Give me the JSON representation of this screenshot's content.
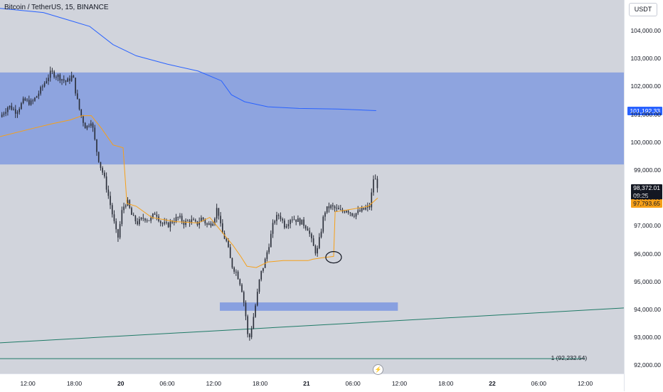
{
  "header": {
    "title": "Bitcoin / TetherUS, 15, BINANCE"
  },
  "axis": {
    "unit": "USDT"
  },
  "tags": {
    "ma_value": "101,192.33",
    "last_price": "98,372.01",
    "countdown": "09:25",
    "vwap_value": "97,793.65"
  },
  "horizontal_line": {
    "label": "1 (92,232.54)",
    "price": 92232.54
  },
  "chart_data": {
    "type": "candlestick",
    "symbol": "Bitcoin / TetherUS",
    "interval": "15",
    "exchange": "BINANCE",
    "ylim": [
      91700,
      105100
    ],
    "y_ticks": [
      {
        "v": 92000,
        "label": "92,000.00"
      },
      {
        "v": 93000,
        "label": "93,000.00"
      },
      {
        "v": 94000,
        "label": "94,000.00"
      },
      {
        "v": 95000,
        "label": "95,000.00"
      },
      {
        "v": 96000,
        "label": "96,000.00"
      },
      {
        "v": 97000,
        "label": "97,000.00"
      },
      {
        "v": 98000,
        "label": "98,000.00"
      },
      {
        "v": 99000,
        "label": "99,000.00"
      },
      {
        "v": 100000,
        "label": "100,000.00"
      },
      {
        "v": 101000,
        "label": "101,000.00"
      },
      {
        "v": 102000,
        "label": "102,000.00"
      },
      {
        "v": 103000,
        "label": "103,000.00"
      },
      {
        "v": 104000,
        "label": "104,000.00"
      }
    ],
    "x_ticks": [
      {
        "t": 0,
        "label": "12:00"
      },
      {
        "t": 6,
        "label": "18:00"
      },
      {
        "t": 12,
        "label": "20",
        "bold": true
      },
      {
        "t": 18,
        "label": "06:00"
      },
      {
        "t": 24,
        "label": "12:00"
      },
      {
        "t": 30,
        "label": "18:00"
      },
      {
        "t": 36,
        "label": "21",
        "bold": true
      },
      {
        "t": 42,
        "label": "06:00"
      },
      {
        "t": 48,
        "label": "12:00"
      },
      {
        "t": 54,
        "label": "18:00"
      },
      {
        "t": 60,
        "label": "22",
        "bold": true
      },
      {
        "t": 66,
        "label": "06:00"
      },
      {
        "t": 72,
        "label": "12:00"
      }
    ],
    "x_range": [
      -3.6,
      77
    ],
    "zones": [
      {
        "t0": -3.6,
        "t1": 77,
        "top": 102500,
        "bottom": 99200
      },
      {
        "t0": 24.8,
        "t1": 47.8,
        "top": 94250,
        "bottom": 93950
      }
    ],
    "trendline": {
      "t0": -3.6,
      "p0": 92800,
      "t1": 77,
      "p1": 94050
    },
    "hline": {
      "t0": -3.6,
      "t1": 72,
      "p": 92232.54
    },
    "annotation_circle": {
      "t": 39.5,
      "p": 95870
    },
    "close_path": [
      [
        -3.6,
        100900
      ],
      [
        -2.5,
        101300
      ],
      [
        -1.5,
        101100
      ],
      [
        -0.5,
        101500
      ],
      [
        0.5,
        101400
      ],
      [
        1.5,
        101800
      ],
      [
        2.5,
        102300
      ],
      [
        3,
        102500
      ],
      [
        4,
        102350
      ],
      [
        5,
        102150
      ],
      [
        5.8,
        102400
      ],
      [
        6.3,
        101600
      ],
      [
        6.8,
        101000
      ],
      [
        7.5,
        100500
      ],
      [
        8.2,
        100800
      ],
      [
        8.8,
        99800
      ],
      [
        9.3,
        99200
      ],
      [
        9.8,
        98800
      ],
      [
        10.3,
        98200
      ],
      [
        11,
        97300
      ],
      [
        11.6,
        96500
      ],
      [
        12.2,
        97600
      ],
      [
        12.8,
        97900
      ],
      [
        13.5,
        97300
      ],
      [
        14.2,
        97100
      ],
      [
        15,
        97300
      ],
      [
        15.8,
        97200
      ],
      [
        16.5,
        97500
      ],
      [
        17.2,
        97100
      ],
      [
        18,
        97000
      ],
      [
        18.8,
        97200
      ],
      [
        19.5,
        97300
      ],
      [
        20.2,
        97100
      ],
      [
        21,
        97200
      ],
      [
        21.8,
        97050
      ],
      [
        22.5,
        97300
      ],
      [
        23.2,
        97000
      ],
      [
        24,
        97200
      ],
      [
        24.5,
        97700
      ],
      [
        25,
        96800
      ],
      [
        25.7,
        96400
      ],
      [
        26.3,
        95600
      ],
      [
        27,
        95300
      ],
      [
        27.6,
        94800
      ],
      [
        28.1,
        93900
      ],
      [
        28.5,
        92800
      ],
      [
        29,
        93500
      ],
      [
        29.5,
        94300
      ],
      [
        30,
        95200
      ],
      [
        30.6,
        95700
      ],
      [
        31.2,
        96400
      ],
      [
        31.8,
        97200
      ],
      [
        32.5,
        97400
      ],
      [
        33.2,
        97000
      ],
      [
        34,
        97300
      ],
      [
        34.8,
        97200
      ],
      [
        35.5,
        97100
      ],
      [
        36.2,
        96900
      ],
      [
        36.8,
        96300
      ],
      [
        37.3,
        96000
      ],
      [
        37.8,
        96700
      ],
      [
        38.3,
        97500
      ],
      [
        39,
        97700
      ],
      [
        39.8,
        97600
      ],
      [
        40.5,
        97500
      ],
      [
        41.2,
        97600
      ],
      [
        42,
        97400
      ],
      [
        42.8,
        97500
      ],
      [
        43.5,
        97600
      ],
      [
        44.2,
        97700
      ],
      [
        44.7,
        98800
      ],
      [
        45.2,
        98400
      ]
    ],
    "ma_path": [
      [
        -3.6,
        104800
      ],
      [
        2,
        104650
      ],
      [
        5,
        104400
      ],
      [
        8,
        104150
      ],
      [
        11,
        103500
      ],
      [
        14,
        103100
      ],
      [
        18,
        102800
      ],
      [
        22,
        102550
      ],
      [
        25,
        102200
      ],
      [
        26.3,
        101700
      ],
      [
        28,
        101450
      ],
      [
        31,
        101270
      ],
      [
        35,
        101210
      ],
      [
        40,
        101190
      ],
      [
        45,
        101130
      ]
    ],
    "vwap_path": [
      [
        -3.6,
        100200
      ],
      [
        0,
        100450
      ],
      [
        3,
        100650
      ],
      [
        5.5,
        100800
      ],
      [
        7,
        100950
      ],
      [
        8.2,
        100950
      ],
      [
        9.5,
        100500
      ],
      [
        11,
        99900
      ],
      [
        12.3,
        99800
      ],
      [
        12.8,
        97800
      ],
      [
        14,
        97700
      ],
      [
        16,
        97300
      ],
      [
        19,
        97150
      ],
      [
        22,
        97100
      ],
      [
        23.5,
        97300
      ],
      [
        25,
        96800
      ],
      [
        26.5,
        96300
      ],
      [
        27.5,
        95900
      ],
      [
        28.3,
        95550
      ],
      [
        29.5,
        95500
      ],
      [
        31,
        95700
      ],
      [
        33,
        95750
      ],
      [
        36.2,
        95750
      ],
      [
        36.8,
        95800
      ],
      [
        38,
        95850
      ],
      [
        39.5,
        95900
      ],
      [
        39.7,
        97500
      ],
      [
        42,
        97600
      ],
      [
        44,
        97700
      ],
      [
        45.2,
        98000
      ]
    ],
    "last_price": 98372.01
  }
}
